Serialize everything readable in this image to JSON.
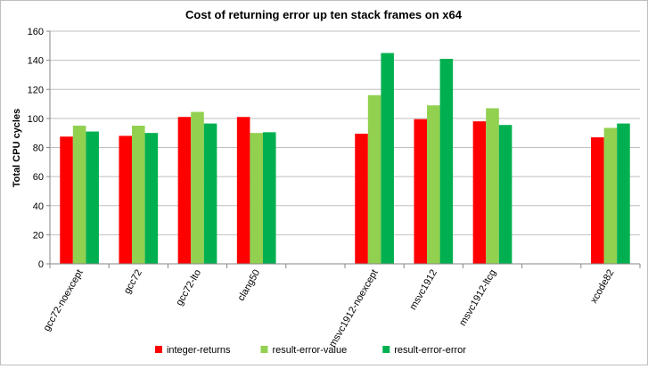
{
  "chart_data": {
    "type": "bar",
    "title": "Cost of returning error up ten stack frames on x64",
    "xlabel": "",
    "ylabel": "Total CPU cycles",
    "ylim": [
      0,
      160
    ],
    "yticks": [
      0,
      20,
      40,
      60,
      80,
      100,
      120,
      140,
      160
    ],
    "grid": "horizontal",
    "legend_position": "bottom",
    "categories": [
      "gcc72-noexcept",
      "gcc72",
      "gcc72-lto",
      "clang50",
      "",
      "msvc1912-noexcept",
      "msvc1912",
      "msvc1912-ltcg",
      "",
      "xcode82"
    ],
    "series": [
      {
        "name": "integer-returns",
        "color": "#ff0000",
        "values": [
          87.5,
          88,
          101,
          101,
          null,
          89.5,
          99.5,
          98,
          null,
          87
        ]
      },
      {
        "name": "result-error-value",
        "color": "#92d050",
        "values": [
          95,
          95,
          104.5,
          90,
          null,
          116,
          109,
          107,
          null,
          93.5
        ]
      },
      {
        "name": "result-error-error",
        "color": "#00b050",
        "values": [
          91,
          90,
          96.5,
          90.5,
          null,
          145,
          141,
          95.5,
          null,
          96.5
        ]
      }
    ]
  }
}
